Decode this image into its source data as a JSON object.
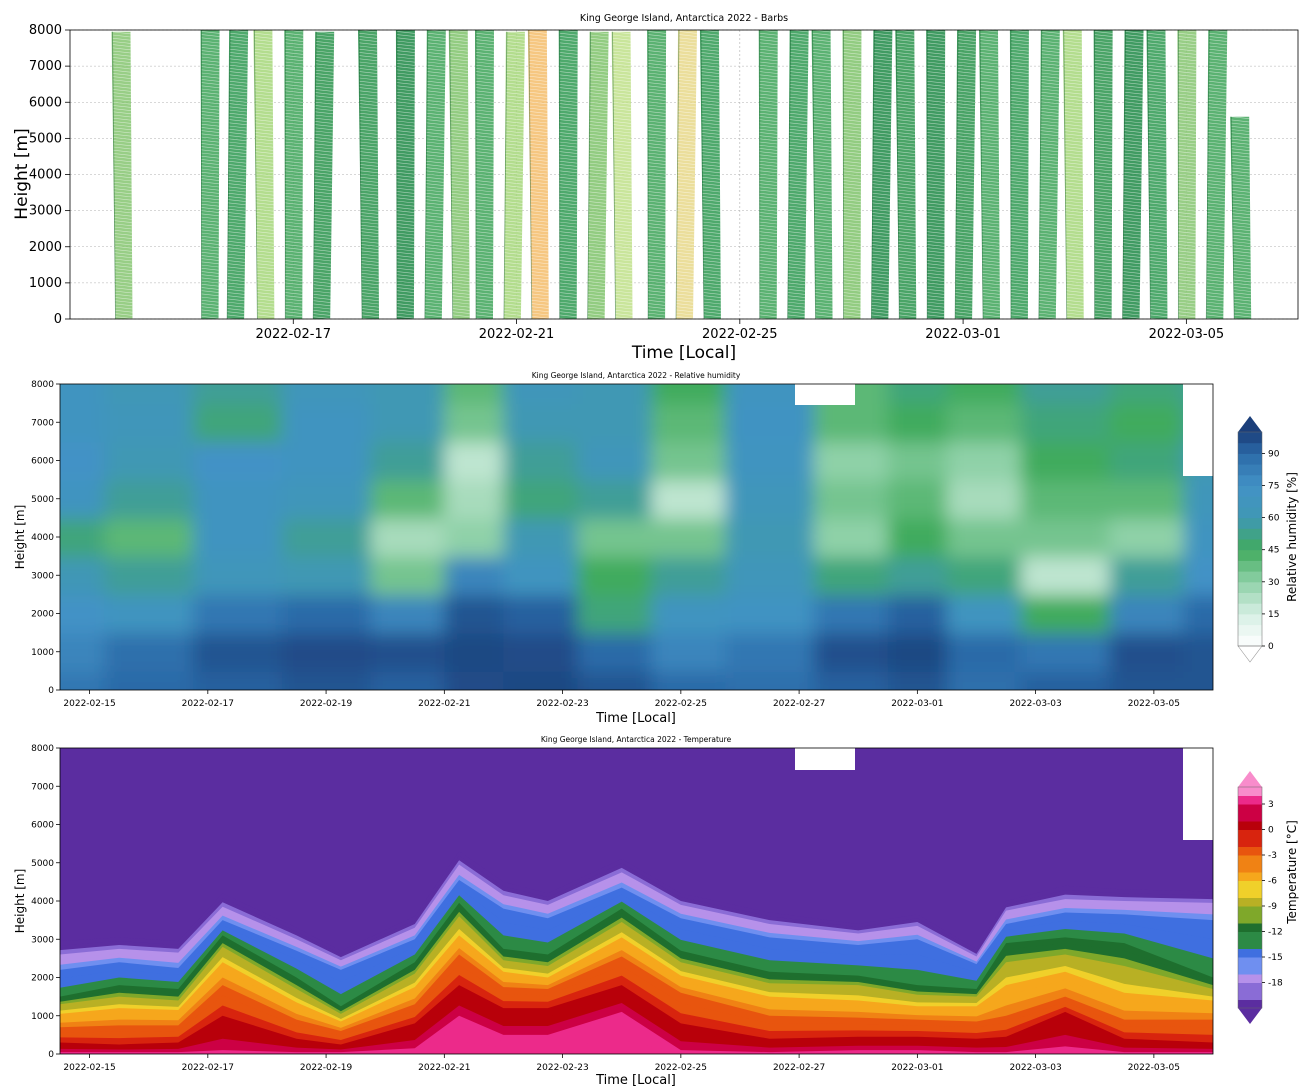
{
  "chart_data": [
    {
      "type": "barbs",
      "title": "King George Island, Antarctica 2022 - Barbs",
      "xlabel": "Time [Local]",
      "ylabel": "Height [m]",
      "xrange": [
        "2022-02-13",
        "2022-03-07"
      ],
      "ylim": [
        0,
        8000
      ],
      "yticks": [
        0,
        1000,
        2000,
        3000,
        4000,
        5000,
        6000,
        7000,
        8000
      ],
      "xticks": [
        "2022-02-17",
        "2022-02-21",
        "2022-02-25",
        "2022-03-01",
        "2022-03-05"
      ],
      "grid": true,
      "profiles": [
        {
          "time": "2022-02-13T23:00",
          "top": 7950,
          "color": "#86c571"
        },
        {
          "time": "2022-02-15T12:00",
          "top": 8050,
          "color": "#3ea559"
        },
        {
          "time": "2022-02-15T23:00",
          "top": 8000,
          "color": "#2f9a52"
        },
        {
          "time": "2022-02-16T12:00",
          "top": 8000,
          "color": "#a6d77a"
        },
        {
          "time": "2022-02-17T00:00",
          "top": 8000,
          "color": "#3ea559"
        },
        {
          "time": "2022-02-17T12:00",
          "top": 7950,
          "color": "#2a944c"
        },
        {
          "time": "2022-02-18T09:00",
          "top": 8000,
          "color": "#2a944c"
        },
        {
          "time": "2022-02-19T00:00",
          "top": 8050,
          "color": "#1f8a46"
        },
        {
          "time": "2022-02-19T12:00",
          "top": 8000,
          "color": "#3ea559"
        },
        {
          "time": "2022-02-20T00:00",
          "top": 8000,
          "color": "#7fc36b"
        },
        {
          "time": "2022-02-20T10:00",
          "top": 8000,
          "color": "#3ea559"
        },
        {
          "time": "2022-02-20T22:00",
          "top": 7950,
          "color": "#a6d77a"
        },
        {
          "time": "2022-02-21T10:00",
          "top": 8050,
          "color": "#f5bd6b"
        },
        {
          "time": "2022-02-21T22:00",
          "top": 8000,
          "color": "#2f9a52"
        },
        {
          "time": "2022-02-22T10:00",
          "top": 7950,
          "color": "#7fc36b"
        },
        {
          "time": "2022-02-22T22:00",
          "top": 7950,
          "color": "#bfe08a"
        },
        {
          "time": "2022-02-23T12:00",
          "top": 8050,
          "color": "#3ea559"
        },
        {
          "time": "2022-02-24T00:00",
          "top": 8050,
          "color": "#e8d88a"
        },
        {
          "time": "2022-02-24T12:00",
          "top": 8000,
          "color": "#2f9a52"
        },
        {
          "time": "2022-02-25T12:00",
          "top": 8000,
          "color": "#3ea559"
        },
        {
          "time": "2022-02-26T00:00",
          "top": 8000,
          "color": "#2f9a52"
        },
        {
          "time": "2022-02-26T12:00",
          "top": 8000,
          "color": "#3ea559"
        },
        {
          "time": "2022-02-27T00:00",
          "top": 8000,
          "color": "#7fc36b"
        },
        {
          "time": "2022-02-27T12:00",
          "top": 8000,
          "color": "#1f8a46"
        },
        {
          "time": "2022-02-28T00:00",
          "top": 8000,
          "color": "#2a944c"
        },
        {
          "time": "2022-02-28T12:00",
          "top": 8000,
          "color": "#1f8a46"
        },
        {
          "time": "2022-03-01T00:00",
          "top": 8000,
          "color": "#2a944c"
        },
        {
          "time": "2022-03-01T12:00",
          "top": 8000,
          "color": "#3ea559"
        },
        {
          "time": "2022-03-02T00:00",
          "top": 8000,
          "color": "#2f9a52"
        },
        {
          "time": "2022-03-02T12:00",
          "top": 8050,
          "color": "#3ea559"
        },
        {
          "time": "2022-03-03T00:00",
          "top": 8050,
          "color": "#a6d77a"
        },
        {
          "time": "2022-03-03T12:00",
          "top": 8050,
          "color": "#2a944c"
        },
        {
          "time": "2022-03-04T00:00",
          "top": 8050,
          "color": "#1f8a46"
        },
        {
          "time": "2022-03-04T12:00",
          "top": 8000,
          "color": "#2f9a52"
        },
        {
          "time": "2022-03-05T00:00",
          "top": 8000,
          "color": "#86c571"
        },
        {
          "time": "2022-03-05T12:00",
          "top": 8000,
          "color": "#3ea559"
        },
        {
          "time": "2022-03-06T00:00",
          "top": 5600,
          "color": "#3ea559"
        }
      ]
    },
    {
      "type": "heatmap",
      "title": "King George Island, Antarctica 2022 - Relative humidity",
      "xlabel": "Time [Local]",
      "ylabel": "Height [m]",
      "colorbar_label": "Relative humidity [%]",
      "colorbar_ticks": [
        0,
        15,
        30,
        45,
        60,
        75,
        90
      ],
      "colorbar_range": [
        0,
        100
      ],
      "xrange": [
        "2022-02-14T12:00",
        "2022-03-06T00:00"
      ],
      "ylim": [
        0,
        8000
      ],
      "yticks": [
        0,
        1000,
        2000,
        3000,
        4000,
        5000,
        6000,
        7000,
        8000
      ],
      "xticks": [
        "2022-02-15",
        "2022-02-17",
        "2022-02-19",
        "2022-02-21",
        "2022-02-23",
        "2022-02-25",
        "2022-02-27",
        "2022-03-01",
        "2022-03-03",
        "2022-03-05"
      ],
      "heights": [
        0,
        1000,
        2000,
        3000,
        4000,
        5000,
        6000,
        7000,
        8000
      ],
      "times": [
        "2022-02-14T12:00",
        "2022-02-16T00:00",
        "2022-02-17T12:00",
        "2022-02-19T00:00",
        "2022-02-20T12:00",
        "2022-02-21T12:00",
        "2022-02-22T12:00",
        "2022-02-24T00:00",
        "2022-02-25T00:00",
        "2022-02-26T12:00",
        "2022-02-28T00:00",
        "2022-03-01T00:00",
        "2022-03-02T00:00",
        "2022-03-03T12:00",
        "2022-03-05T00:00",
        "2022-03-06T00:00"
      ],
      "rh": [
        [
          85,
          90,
          92,
          95,
          92,
          97,
          98,
          95,
          90,
          88,
          92,
          95,
          88,
          92,
          95,
          95
        ],
        [
          80,
          88,
          95,
          97,
          96,
          98,
          97,
          90,
          80,
          85,
          96,
          98,
          90,
          85,
          96,
          95
        ],
        [
          75,
          70,
          85,
          90,
          80,
          95,
          92,
          50,
          70,
          72,
          85,
          92,
          70,
          45,
          80,
          90
        ],
        [
          62,
          55,
          65,
          60,
          35,
          80,
          70,
          45,
          55,
          65,
          50,
          55,
          50,
          20,
          55,
          75
        ],
        [
          50,
          40,
          70,
          55,
          25,
          30,
          60,
          35,
          35,
          60,
          30,
          45,
          35,
          35,
          30,
          70
        ],
        [
          70,
          55,
          70,
          65,
          40,
          25,
          50,
          55,
          20,
          65,
          35,
          40,
          25,
          40,
          40,
          65
        ],
        [
          75,
          60,
          75,
          70,
          55,
          20,
          55,
          65,
          35,
          70,
          30,
          35,
          30,
          45,
          50,
          60
        ],
        [
          70,
          65,
          50,
          70,
          60,
          35,
          60,
          60,
          40,
          72,
          40,
          45,
          40,
          50,
          45,
          55
        ],
        [
          70,
          62,
          55,
          65,
          60,
          40,
          65,
          60,
          45,
          70,
          40,
          50,
          45,
          55,
          50,
          55
        ]
      ]
    },
    {
      "type": "heatmap",
      "title": "King George Island, Antarctica 2022 - Temperature",
      "xlabel": "Time [Local]",
      "ylabel": "Height [m]",
      "colorbar_label": "Temperature [°C]",
      "colorbar_ticks": [
        -18,
        -15,
        -12,
        -9,
        -6,
        -3,
        0,
        3
      ],
      "colorbar_range": [
        -21,
        5
      ],
      "xrange": [
        "2022-02-14T12:00",
        "2022-03-06T00:00"
      ],
      "ylim": [
        0,
        8000
      ],
      "yticks": [
        0,
        1000,
        2000,
        3000,
        4000,
        5000,
        6000,
        7000,
        8000
      ],
      "xticks": [
        "2022-02-15",
        "2022-02-17",
        "2022-02-19",
        "2022-02-21",
        "2022-02-23",
        "2022-02-25",
        "2022-02-27",
        "2022-03-01",
        "2022-03-03",
        "2022-03-05"
      ],
      "times": [
        "2022-02-14T12:00",
        "2022-02-15T12:00",
        "2022-02-16T12:00",
        "2022-02-17T06:00",
        "2022-02-18T12:00",
        "2022-02-19T06:00",
        "2022-02-20T12:00",
        "2022-02-21T06:00",
        "2022-02-22T00:00",
        "2022-02-22T18:00",
        "2022-02-24T00:00",
        "2022-02-25T00:00",
        "2022-02-26T12:00",
        "2022-02-28T00:00",
        "2022-03-01T00:00",
        "2022-03-02T00:00",
        "2022-03-02T12:00",
        "2022-03-03T12:00",
        "2022-03-04T12:00",
        "2022-03-06T00:00"
      ],
      "isotherm_heights": [
        {
          "temp": -21,
          "values": [
            2950,
            3050,
            2950,
            4200,
            3300,
            2700,
            3600,
            5300,
            4500,
            4200,
            5100,
            4200,
            3700,
            3400,
            3650,
            2750,
            4000,
            4400,
            4300,
            4250
          ]
        },
        {
          "temp": -18,
          "values": [
            2600,
            2750,
            2650,
            3850,
            3000,
            2450,
            3300,
            4950,
            4150,
            3900,
            4750,
            3900,
            3400,
            3150,
            3350,
            2550,
            3750,
            4050,
            4000,
            3950
          ]
        },
        {
          "temp": -15,
          "values": [
            2200,
            2400,
            2250,
            3500,
            2700,
            2200,
            3000,
            4550,
            3800,
            3550,
            4350,
            3550,
            3050,
            2850,
            3000,
            2350,
            3400,
            3700,
            3650,
            3500
          ]
        },
        {
          "temp": -12,
          "values": [
            1500,
            1800,
            1700,
            3100,
            2000,
            1250,
            2400,
            3950,
            2750,
            2600,
            3800,
            2700,
            2150,
            2050,
            1800,
            1700,
            2900,
            3050,
            2900,
            2000
          ]
        },
        {
          "temp": -9,
          "values": [
            1300,
            1500,
            1400,
            2800,
            1700,
            1050,
            2100,
            3600,
            2450,
            2300,
            3450,
            2400,
            1850,
            1800,
            1550,
            1500,
            2400,
            2600,
            2300,
            1700
          ]
        },
        {
          "temp": -6,
          "values": [
            1050,
            1200,
            1150,
            2400,
            1350,
            850,
            1750,
            3100,
            2150,
            2000,
            3050,
            2050,
            1500,
            1400,
            1250,
            1250,
            1800,
            2150,
            1600,
            1400
          ]
        },
        {
          "temp": -3,
          "values": [
            700,
            750,
            750,
            1800,
            900,
            600,
            1300,
            2600,
            1750,
            1700,
            2550,
            1600,
            1000,
            950,
            900,
            850,
            1000,
            1500,
            900,
            900
          ]
        },
        {
          "temp": 0,
          "values": [
            300,
            250,
            300,
            1000,
            400,
            250,
            800,
            1800,
            1200,
            1200,
            1800,
            800,
            400,
            450,
            450,
            400,
            450,
            1100,
            400,
            300
          ]
        },
        {
          "temp": 3,
          "values": [
            50,
            50,
            50,
            100,
            50,
            50,
            150,
            1000,
            500,
            500,
            1100,
            100,
            50,
            100,
            100,
            50,
            50,
            200,
            50,
            50
          ]
        }
      ]
    }
  ]
}
